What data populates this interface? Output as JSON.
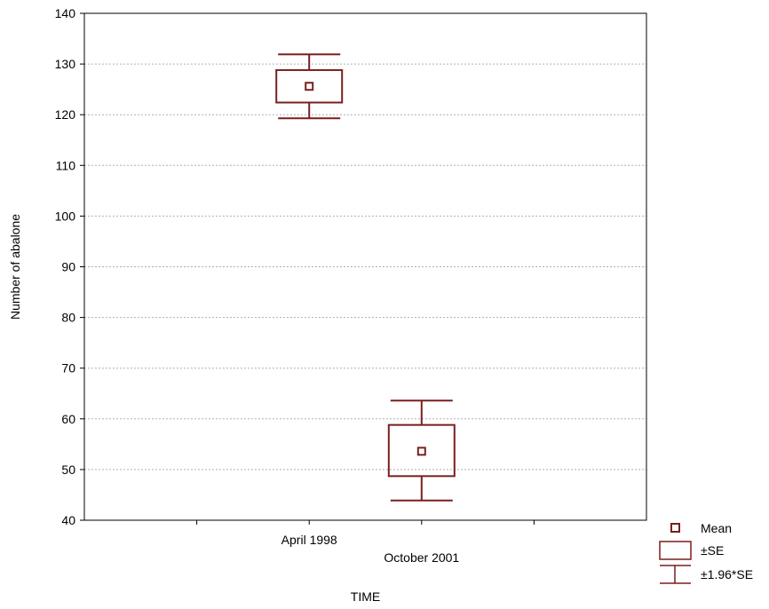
{
  "chart_data": {
    "type": "box",
    "title": "",
    "xlabel": "TIME",
    "ylabel": "Number of abalone",
    "ylim": [
      40,
      140
    ],
    "yticks": [
      40,
      50,
      60,
      70,
      80,
      90,
      100,
      110,
      120,
      130,
      140
    ],
    "grid": true,
    "legend_position": "bottom-right",
    "categories": [
      "April 1998",
      "October 2001"
    ],
    "series": [
      {
        "category": "April 1998",
        "mean": 125.6,
        "se_low": 122.4,
        "se_high": 128.8,
        "ci_low": 119.3,
        "ci_high": 131.9
      },
      {
        "category": "October 2001",
        "mean": 53.6,
        "se_low": 48.7,
        "se_high": 58.8,
        "ci_low": 43.9,
        "ci_high": 63.6
      }
    ],
    "legend": [
      "Mean",
      "±SE",
      "±1.96*SE"
    ],
    "colors": {
      "series": "#7a1f1f",
      "grid": "#b0b0b0",
      "axis": "#000000"
    }
  }
}
